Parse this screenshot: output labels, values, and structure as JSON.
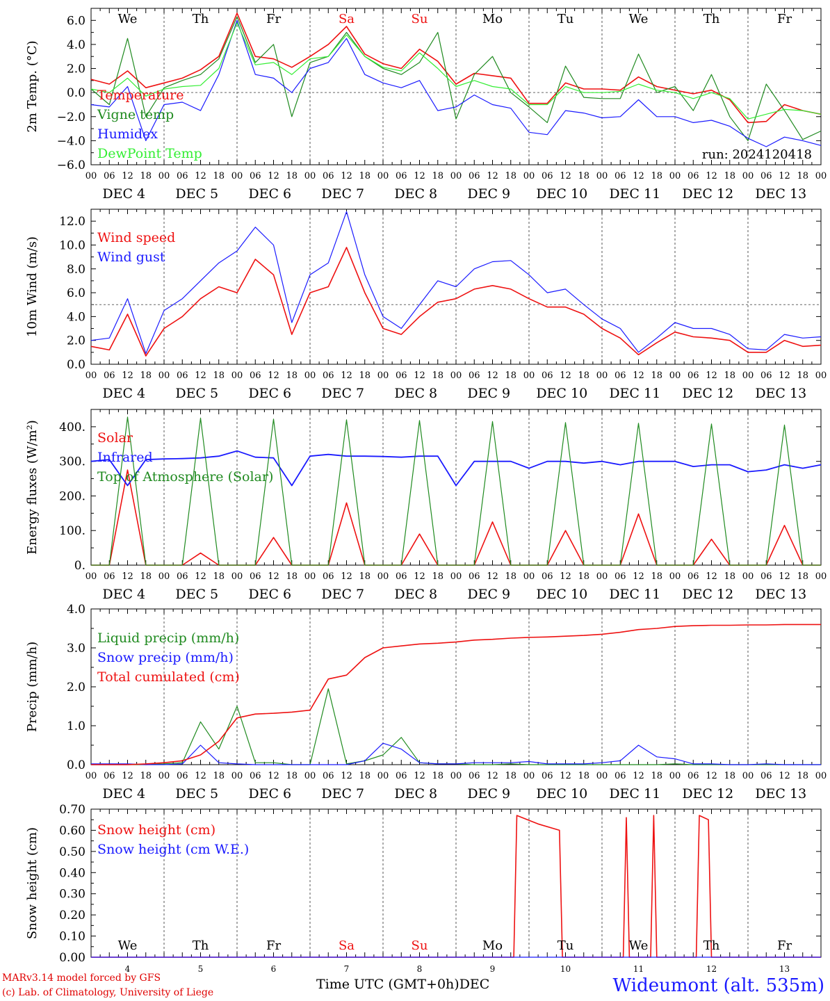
{
  "footer": {
    "model": "MARv3.14 model forced by GFS",
    "credit": "(c) Lab. of Climatology, University of Liege",
    "xaxis_title": "Time UTC (GMT+0h)",
    "xaxis_unit": "DEC",
    "station": "Wideumont (alt. 535m)"
  },
  "colors": {
    "red": "#ee1111",
    "darkgreen": "#1f8a1f",
    "blue": "#1a1aff",
    "lightgreen": "#33ee33"
  },
  "days": {
    "names": [
      "We",
      "Th",
      "Fr",
      "Sa",
      "Su",
      "Mo",
      "Tu",
      "We",
      "Th",
      "Fr"
    ],
    "weekend_color": [
      "#000000",
      "#000000",
      "#000000",
      "#ee1111",
      "#ee1111",
      "#000000",
      "#000000",
      "#000000",
      "#000000",
      "#000000"
    ],
    "dates": [
      "DEC  4",
      "DEC  5",
      "DEC  6",
      "DEC  7",
      "DEC  8",
      "DEC  9",
      "DEC 10",
      "DEC 11",
      "DEC 12",
      "DEC 13"
    ],
    "day_numbers": [
      "4",
      "5",
      "6",
      "7",
      "8",
      "9",
      "10",
      "11",
      "12",
      "13"
    ],
    "hour_ticks": [
      "00",
      "06",
      "12",
      "18"
    ],
    "end_hour": "00"
  },
  "chart_data": [
    {
      "type": "line",
      "panel": "temperature",
      "ylabel": "2m Temp. (°C)",
      "ylim": [
        -6,
        7
      ],
      "yticks": [
        "6.0",
        "4.0",
        "2.0",
        "0.0",
        "−2.0",
        "−4.0",
        "−6.0"
      ],
      "ytick_values": [
        6,
        4,
        2,
        0,
        -2,
        -4,
        -6
      ],
      "ref_line": 0,
      "run_label": "run: 2024120418",
      "x_hours": [
        0,
        6,
        12,
        18,
        24,
        30,
        36,
        42,
        48,
        54,
        60,
        66,
        72,
        78,
        84,
        90,
        96,
        102,
        108,
        114,
        120,
        126,
        132,
        138,
        144,
        150,
        156,
        162,
        168,
        174,
        180,
        186,
        192,
        198,
        204,
        210,
        216,
        222,
        228,
        234,
        240
      ],
      "series": [
        {
          "name": "Temperature",
          "color": "#ee1111",
          "values": [
            1.1,
            0.7,
            1.8,
            0.4,
            0.8,
            1.2,
            1.9,
            3.0,
            6.6,
            3.0,
            2.8,
            2.1,
            3.0,
            4.0,
            5.5,
            3.2,
            2.4,
            2.0,
            3.6,
            2.6,
            0.7,
            1.6,
            1.4,
            1.2,
            -0.9,
            -0.9,
            0.8,
            0.3,
            0.3,
            0.2,
            1.3,
            0.5,
            0.2,
            -0.1,
            0.2,
            -0.6,
            -2.5,
            -2.4,
            -1.0,
            -1.5,
            -1.8
          ]
        },
        {
          "name": "Vigne temp",
          "color": "#1f8a1f",
          "values": [
            0.3,
            -1.0,
            4.5,
            -2.0,
            0.4,
            1.0,
            1.5,
            2.8,
            6.3,
            2.5,
            4.0,
            -2.0,
            2.5,
            3.0,
            5.0,
            3.0,
            2.0,
            1.5,
            2.5,
            5.0,
            -2.2,
            1.5,
            3.0,
            0.0,
            -1.2,
            -2.5,
            2.2,
            -0.4,
            -0.5,
            -0.5,
            3.2,
            0.0,
            0.5,
            -1.5,
            1.5,
            -2.0,
            -4.0,
            0.7,
            -1.5,
            -3.9,
            -3.2
          ]
        },
        {
          "name": "Humidex",
          "color": "#1a1aff",
          "values": [
            -1.0,
            -1.2,
            0.5,
            -4.0,
            -1.0,
            -0.8,
            -1.5,
            1.5,
            6.0,
            1.5,
            1.2,
            0.0,
            2.0,
            2.5,
            4.5,
            1.5,
            0.8,
            0.4,
            1.0,
            -1.5,
            -1.2,
            -0.2,
            -1.0,
            -1.3,
            -3.3,
            -3.5,
            -1.5,
            -1.7,
            -2.1,
            -2.0,
            -0.6,
            -2.0,
            -2.0,
            -2.5,
            -2.3,
            -2.8,
            -3.8,
            -4.5,
            -3.7,
            -4.0,
            -4.4
          ]
        },
        {
          "name": "DewPoint Temp",
          "color": "#33ee33",
          "values": [
            0.3,
            0.0,
            1.2,
            -0.3,
            0.3,
            0.5,
            0.6,
            2.0,
            5.8,
            2.3,
            2.5,
            1.5,
            2.8,
            3.0,
            4.8,
            3.0,
            2.1,
            1.8,
            3.3,
            2.0,
            0.5,
            1.0,
            0.5,
            0.3,
            -1.0,
            -1.0,
            0.5,
            0.0,
            0.0,
            0.1,
            0.7,
            0.2,
            0.0,
            -0.5,
            0.0,
            -0.5,
            -2.2,
            -1.8,
            -1.4,
            -1.5,
            -1.8
          ]
        }
      ]
    },
    {
      "type": "line",
      "panel": "wind",
      "ylabel": "10m Wind (m/s)",
      "ylim": [
        0,
        13
      ],
      "yticks": [
        "12.0",
        "10.0",
        "8.0",
        "6.0",
        "4.0",
        "2.0",
        "0.0"
      ],
      "ytick_values": [
        12,
        10,
        8,
        6,
        4,
        2,
        0
      ],
      "ref_line": 5,
      "x_hours": [
        0,
        6,
        12,
        18,
        24,
        30,
        36,
        42,
        48,
        54,
        60,
        66,
        72,
        78,
        84,
        90,
        96,
        102,
        108,
        114,
        120,
        126,
        132,
        138,
        144,
        150,
        156,
        162,
        168,
        174,
        180,
        186,
        192,
        198,
        204,
        210,
        216,
        222,
        228,
        234,
        240
      ],
      "series": [
        {
          "name": "Wind speed",
          "color": "#ee1111",
          "values": [
            1.5,
            1.2,
            4.2,
            0.7,
            3.0,
            4.0,
            5.5,
            6.5,
            6.0,
            8.8,
            7.5,
            2.5,
            6.0,
            6.5,
            9.8,
            6.0,
            3.0,
            2.5,
            4.0,
            5.2,
            5.5,
            6.3,
            6.6,
            6.3,
            5.5,
            4.8,
            4.8,
            4.2,
            3.0,
            2.2,
            0.8,
            1.8,
            2.7,
            2.3,
            2.2,
            2.0,
            1.0,
            1.0,
            2.0,
            1.5,
            1.6
          ]
        },
        {
          "name": "Wind gust",
          "color": "#1a1aff",
          "values": [
            2.0,
            2.2,
            5.5,
            0.9,
            4.5,
            5.5,
            7.0,
            8.5,
            9.5,
            11.5,
            10.0,
            3.5,
            7.5,
            8.5,
            12.8,
            7.5,
            4.0,
            3.0,
            5.0,
            7.0,
            6.5,
            8.0,
            8.6,
            8.7,
            7.5,
            6.0,
            6.3,
            5.0,
            3.8,
            3.0,
            1.0,
            2.2,
            3.5,
            3.0,
            3.0,
            2.5,
            1.3,
            1.2,
            2.5,
            2.2,
            2.3
          ]
        }
      ]
    },
    {
      "type": "line",
      "panel": "energy",
      "ylabel": "Energy fluxes (W/m²)",
      "ylim": [
        0,
        450
      ],
      "yticks": [
        "400.",
        "300.",
        "200.",
        "100.",
        "0."
      ],
      "ytick_values": [
        400,
        300,
        200,
        100,
        0
      ],
      "x_hours": [
        0,
        6,
        12,
        18,
        24,
        30,
        36,
        42,
        48,
        54,
        60,
        66,
        72,
        78,
        84,
        90,
        96,
        102,
        108,
        114,
        120,
        126,
        132,
        138,
        144,
        150,
        156,
        162,
        168,
        174,
        180,
        186,
        192,
        198,
        204,
        210,
        216,
        222,
        228,
        234,
        240
      ],
      "series": [
        {
          "name": "Solar",
          "color": "#ee1111",
          "values": [
            0,
            0,
            275,
            0,
            0,
            0,
            35,
            0,
            0,
            0,
            80,
            0,
            0,
            0,
            180,
            0,
            0,
            0,
            90,
            0,
            0,
            0,
            125,
            0,
            0,
            0,
            100,
            0,
            0,
            0,
            148,
            0,
            0,
            0,
            75,
            0,
            0,
            0,
            115,
            0,
            0
          ]
        },
        {
          "name": "Infrared",
          "color": "#1a1aff",
          "values": [
            300,
            305,
            230,
            305,
            307,
            308,
            310,
            315,
            330,
            312,
            310,
            230,
            315,
            320,
            315,
            315,
            314,
            312,
            315,
            315,
            230,
            300,
            300,
            300,
            280,
            300,
            300,
            295,
            300,
            290,
            300,
            300,
            300,
            285,
            290,
            290,
            270,
            275,
            290,
            280,
            290
          ]
        },
        {
          "name": "Top of Atmosphere (Solar)",
          "color": "#1f8a1f",
          "values": [
            0,
            0,
            428,
            0,
            0,
            0,
            425,
            0,
            0,
            0,
            422,
            0,
            0,
            0,
            420,
            0,
            0,
            0,
            418,
            0,
            0,
            0,
            415,
            0,
            0,
            0,
            412,
            0,
            0,
            0,
            410,
            0,
            0,
            0,
            408,
            0,
            0,
            0,
            405,
            0,
            0
          ]
        }
      ]
    },
    {
      "type": "line",
      "panel": "precip",
      "ylabel": "Precip (mm/h)",
      "ylim": [
        0,
        4
      ],
      "yticks": [
        "4.0",
        "3.0",
        "2.0",
        "1.0",
        "0.0"
      ],
      "ytick_values": [
        4,
        3,
        2,
        1,
        0
      ],
      "x_hours": [
        0,
        6,
        12,
        18,
        24,
        30,
        36,
        42,
        48,
        54,
        60,
        66,
        72,
        78,
        84,
        90,
        96,
        102,
        108,
        114,
        120,
        126,
        132,
        138,
        144,
        150,
        156,
        162,
        168,
        174,
        180,
        186,
        192,
        198,
        204,
        210,
        216,
        222,
        228,
        234,
        240
      ],
      "series": [
        {
          "name": "Liquid precip (mm/h)",
          "color": "#1f8a1f",
          "values": [
            0,
            0,
            0,
            0,
            0.02,
            0.05,
            1.1,
            0.4,
            1.5,
            0.05,
            0.05,
            0,
            0,
            1.95,
            0.02,
            0.1,
            0.25,
            0.7,
            0.05,
            0.02,
            0.02,
            0,
            0,
            0.02,
            0,
            0,
            0,
            0,
            0,
            0,
            0,
            0,
            0.02,
            0,
            0,
            0,
            0,
            0,
            0,
            0,
            0
          ]
        },
        {
          "name": "Snow precip (mm/h)",
          "color": "#1a1aff",
          "values": [
            0.02,
            0.02,
            0.02,
            0,
            0,
            0.02,
            0.5,
            0.05,
            0.02,
            0,
            0,
            0,
            0,
            0,
            0,
            0.1,
            0.55,
            0.4,
            0.05,
            0.02,
            0.02,
            0.05,
            0.05,
            0.05,
            0.08,
            0.02,
            0.02,
            0.02,
            0.05,
            0.1,
            0.5,
            0.2,
            0.15,
            0.02,
            0.02,
            0,
            0,
            0.02,
            0,
            0,
            0
          ]
        },
        {
          "name": "Total cumulated (cm)",
          "color": "#ee1111",
          "values": [
            0,
            0,
            0,
            0.02,
            0.05,
            0.1,
            0.25,
            0.6,
            1.2,
            1.3,
            1.32,
            1.35,
            1.4,
            2.2,
            2.3,
            2.75,
            3.0,
            3.05,
            3.1,
            3.12,
            3.15,
            3.2,
            3.22,
            3.25,
            3.27,
            3.28,
            3.3,
            3.32,
            3.35,
            3.4,
            3.47,
            3.5,
            3.55,
            3.57,
            3.58,
            3.58,
            3.59,
            3.59,
            3.6,
            3.6,
            3.6
          ]
        }
      ]
    },
    {
      "type": "line",
      "panel": "snow",
      "ylabel": "Snow height (cm)",
      "ylim": [
        0,
        0.7
      ],
      "yticks": [
        "0.70",
        "0.60",
        "0.50",
        "0.40",
        "0.30",
        "0.20",
        "0.10",
        "0.00"
      ],
      "ytick_values": [
        0.7,
        0.6,
        0.5,
        0.4,
        0.3,
        0.2,
        0.1,
        0.0
      ],
      "series": [
        {
          "name": "Snow height (cm)",
          "color": "#ee1111",
          "x_hours": [
            0,
            139,
            140,
            147,
            154,
            155,
            175,
            176,
            177,
            184,
            185,
            186,
            199,
            200,
            203,
            204,
            240
          ],
          "values": [
            0,
            0,
            0.67,
            0.63,
            0.6,
            0,
            0,
            0.66,
            0,
            0,
            0.67,
            0,
            0,
            0.67,
            0.65,
            0,
            0
          ]
        },
        {
          "name": "Snow height (cm W.E.)",
          "color": "#1a1aff",
          "x_hours": [
            0,
            240
          ],
          "values": [
            0,
            0
          ]
        }
      ]
    }
  ]
}
